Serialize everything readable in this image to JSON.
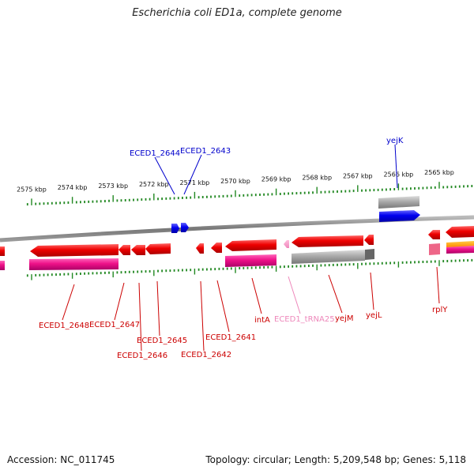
{
  "title": "Escherichia coli ED1a, complete genome",
  "footer": {
    "accession": "Accession: NC_011745",
    "summary": "Topology: circular; Length: 5,209,548 bp; Genes: 5,118"
  },
  "colors": {
    "forward_gene": "#0000ee",
    "reverse_gene": "#ee0000",
    "cds": "#ee1188",
    "trna": "#ee88bb",
    "pseudo": "#aaaaaa",
    "ruler": "#228822",
    "backbone": "#888888"
  },
  "ruler": {
    "labels": [
      "2575 kbp",
      "2574 kbp",
      "2573 kbp",
      "2572 kbp",
      "2571 kbp",
      "2570 kbp",
      "2569 kbp",
      "2568 kbp",
      "2567 kbp",
      "2566 kbp",
      "2565 kbp"
    ]
  },
  "labels": {
    "top": [
      {
        "text": "ECED1_2644",
        "color": "#0000cc"
      },
      {
        "text": "ECED1_2643",
        "color": "#0000cc"
      },
      {
        "text": "yejK",
        "color": "#0000cc"
      }
    ],
    "bottom": [
      {
        "text": "ECED1_2648",
        "color": "#cc0000"
      },
      {
        "text": "ECED1_2647",
        "color": "#cc0000"
      },
      {
        "text": "ECED1_2646",
        "color": "#cc0000"
      },
      {
        "text": "ECED1_2645",
        "color": "#cc0000"
      },
      {
        "text": "ECED1_2642",
        "color": "#cc0000"
      },
      {
        "text": "ECED1_2641",
        "color": "#cc0000"
      },
      {
        "text": "intA",
        "color": "#cc0000"
      },
      {
        "text": "ECED1_tRNA25",
        "color": "#ee88bb"
      },
      {
        "text": "yejM",
        "color": "#cc0000"
      },
      {
        "text": "yejL",
        "color": "#cc0000"
      },
      {
        "text": "rplY",
        "color": "#cc0000"
      }
    ]
  }
}
